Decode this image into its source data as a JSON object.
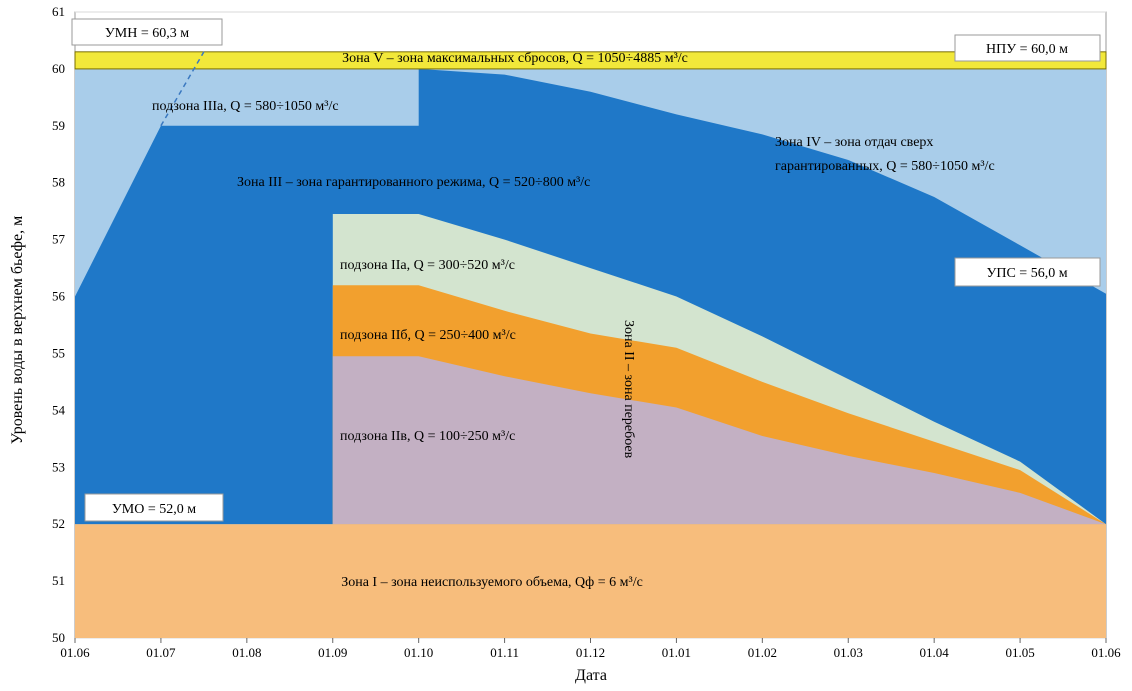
{
  "chart_data": {
    "type": "area",
    "title": "",
    "xlabel": "Дата",
    "ylabel": "Уровень воды в верхнем бьефе, м",
    "ylim": [
      50,
      61
    ],
    "yticks": [
      50,
      51,
      52,
      53,
      54,
      55,
      56,
      57,
      58,
      59,
      60,
      61
    ],
    "xlim": [
      0,
      12
    ],
    "x_categories": [
      "01.06",
      "01.07",
      "01.08",
      "01.09",
      "01.10",
      "01.11",
      "01.12",
      "01.01",
      "01.02",
      "01.03",
      "01.04",
      "01.05",
      "01.06"
    ],
    "colors": {
      "zone1": "#f7bd7c",
      "zone3": "#1f78c8",
      "zone3a": "#a9cdea",
      "zone4": "#a9cdea",
      "zone5": "#f2e83a",
      "zone2a": "#d3e4cf",
      "zone2b": "#f2a02e",
      "zone2v": "#c3b0c3"
    },
    "series": [
      {
        "name": "zone1",
        "label": "Зона I – зона неиспользуемого объема, Qф = 6 м³/с",
        "points": [
          [
            0,
            50
          ],
          [
            12,
            50
          ],
          [
            12,
            52
          ],
          [
            0,
            52
          ]
        ]
      },
      {
        "name": "zone3_upper",
        "label": "Зона III – зона гарантированного режима, Q = 520÷800 м³/с",
        "points": [
          [
            0,
            56
          ],
          [
            1,
            59
          ],
          [
            4,
            59
          ],
          [
            4,
            60
          ],
          [
            5,
            59.9
          ],
          [
            6,
            59.6
          ],
          [
            7,
            59.2
          ],
          [
            8,
            58.85
          ],
          [
            9,
            58.4
          ],
          [
            10,
            57.75
          ],
          [
            11,
            56.9
          ],
          [
            12,
            56.05
          ]
        ]
      },
      {
        "name": "zone2a_upper",
        "label": "подзона IIа, Q = 300÷520 м³/с",
        "points": [
          [
            3,
            57.45
          ],
          [
            4,
            57.45
          ],
          [
            5,
            57.0
          ],
          [
            6,
            56.5
          ],
          [
            7,
            56.0
          ],
          [
            8,
            55.3
          ],
          [
            9,
            54.55
          ],
          [
            10,
            53.8
          ],
          [
            11,
            53.1
          ],
          [
            12,
            52.0
          ]
        ]
      },
      {
        "name": "zone2b_upper",
        "label": "подзона IIб, Q = 250÷400 м³/с",
        "points": [
          [
            3,
            56.2
          ],
          [
            4,
            56.2
          ],
          [
            5,
            55.75
          ],
          [
            6,
            55.35
          ],
          [
            7,
            55.1
          ],
          [
            8,
            54.5
          ],
          [
            9,
            53.95
          ],
          [
            10,
            53.45
          ],
          [
            11,
            52.95
          ],
          [
            12,
            52.0
          ]
        ]
      },
      {
        "name": "zone2v_upper",
        "label": "подзона IIв, Q = 100÷250 м³/с",
        "points": [
          [
            3,
            54.95
          ],
          [
            4,
            54.95
          ],
          [
            5,
            54.6
          ],
          [
            6,
            54.3
          ],
          [
            7,
            54.05
          ],
          [
            8,
            53.55
          ],
          [
            9,
            53.2
          ],
          [
            10,
            52.9
          ],
          [
            11,
            52.55
          ],
          [
            12,
            52.0
          ]
        ]
      }
    ],
    "annotations": {
      "umn": "УМН = 60,3 м",
      "npu": "НПУ = 60,0 м",
      "ups": "УПС = 56,0 м",
      "umo": "УМО = 52,0 м",
      "zone5": "Зона V – зона максимальных сбросов, Q = 1050÷4885 м³/с",
      "zone3a": "подзона IIIа,  Q = 580÷1050 м³/с",
      "zone4_line1": "Зона IV – зона отдач сверх",
      "zone4_line2": "гарантированных,  Q = 580÷1050 м³/с",
      "zone2": "Зона II – зона перебоев"
    },
    "levels": {
      "umn": 60.3,
      "npu": 60.0,
      "ups": 56.0,
      "umo": 52.0
    },
    "zone5_range": [
      60.0,
      60.3
    ],
    "zone3a_range": [
      59.0,
      60.0
    ]
  }
}
